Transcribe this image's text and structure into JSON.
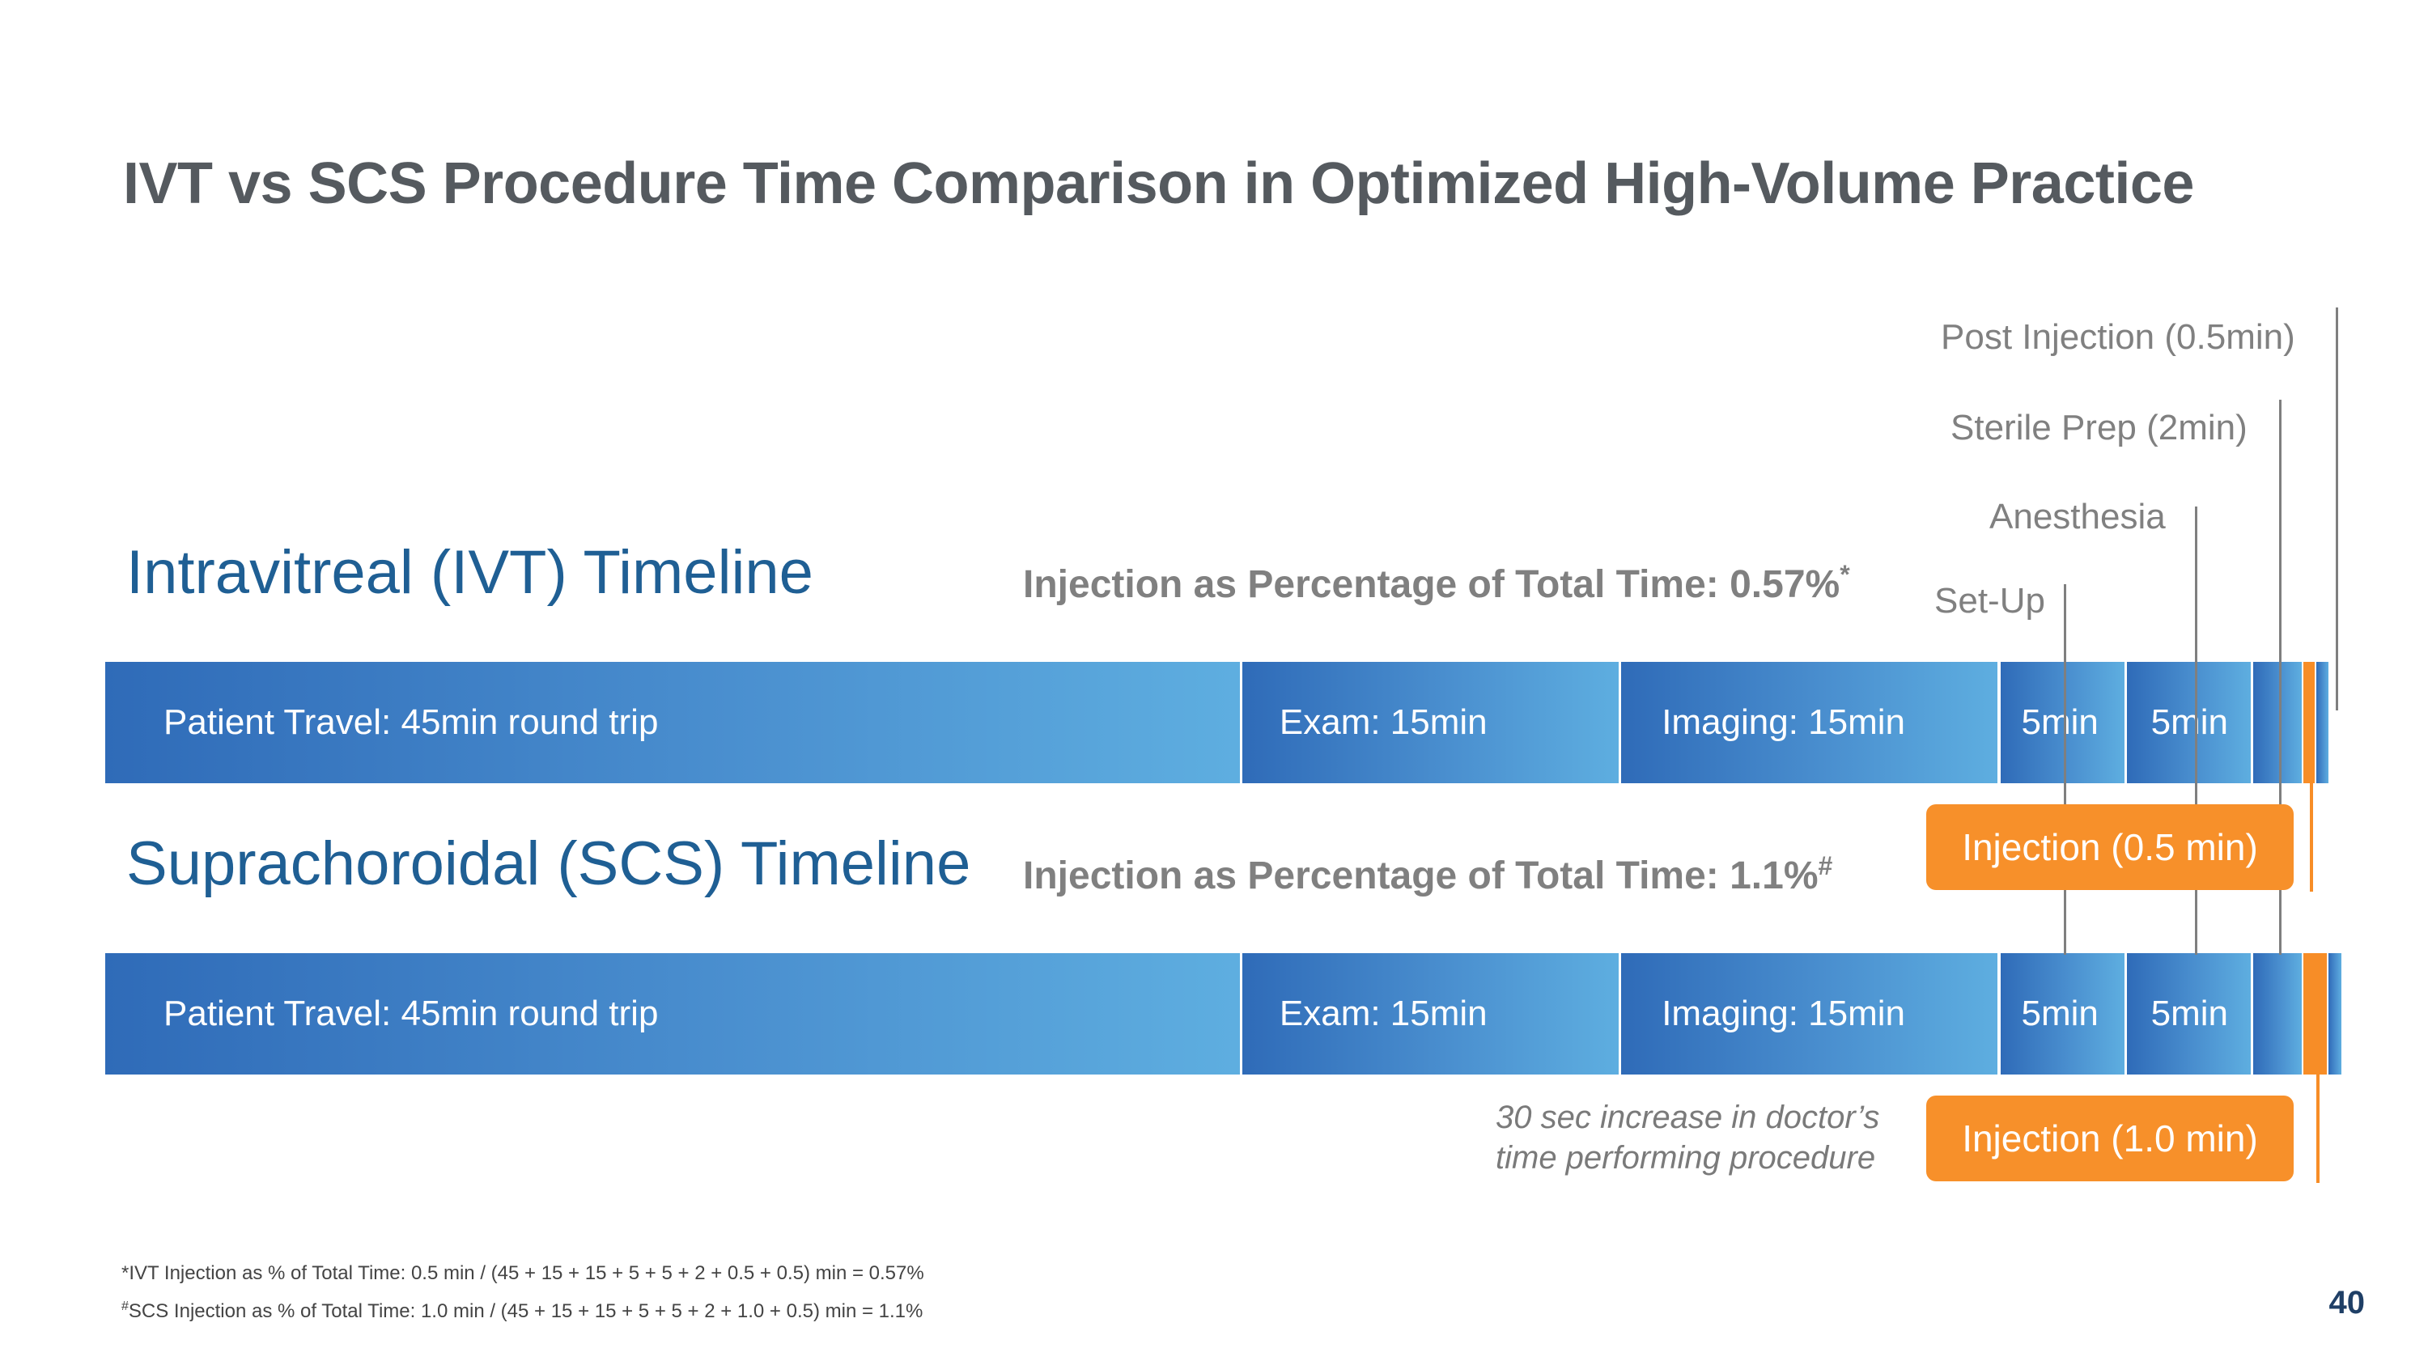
{
  "title": "IVT vs SCS Procedure Time Comparison in Optimized High-Volume Practice",
  "ivt": {
    "heading": "Intravitreal (IVT) Timeline",
    "pct_label": "Injection as Percentage of Total Time: 0.57%",
    "pct_mark": "*",
    "segments": [
      {
        "label": "Patient Travel: 45min round trip",
        "minutes": 45
      },
      {
        "label": "Exam: 15min",
        "minutes": 15
      },
      {
        "label": "Imaging: 15min",
        "minutes": 15
      },
      {
        "label": "5min",
        "minutes": 5
      },
      {
        "label": "5min",
        "minutes": 5
      },
      {
        "label": "",
        "minutes": 2
      },
      {
        "label": "",
        "minutes": 0.5
      },
      {
        "label": "",
        "minutes": 0.5
      }
    ],
    "injection_box": "Injection (0.5 min)"
  },
  "scs": {
    "heading": "Suprachoroidal (SCS) Timeline",
    "pct_label": "Injection as Percentage of Total Time: 1.1%",
    "pct_mark": "#",
    "segments": [
      {
        "label": "Patient Travel: 45min round trip",
        "minutes": 45
      },
      {
        "label": "Exam: 15min",
        "minutes": 15
      },
      {
        "label": "Imaging: 15min",
        "minutes": 15
      },
      {
        "label": "5min",
        "minutes": 5
      },
      {
        "label": "5min",
        "minutes": 5
      },
      {
        "label": "",
        "minutes": 2
      },
      {
        "label": "",
        "minutes": 1.0
      },
      {
        "label": "",
        "minutes": 0.5
      }
    ],
    "injection_box": "Injection (1.0 min)"
  },
  "callouts": {
    "post_injection": "Post Injection (0.5min)",
    "sterile_prep": "Sterile Prep (2min)",
    "anesthesia": "Anesthesia",
    "set_up": "Set-Up"
  },
  "note": "30 sec increase in doctor’s time performing procedure",
  "footnotes": {
    "ivt": "*IVT Injection as % of Total Time: 0.5 min / (45 + 15 + 15 + 5 + 5 + 2 + 0.5 + 0.5) min = 0.57%",
    "scs_mark": "#",
    "scs": "SCS Injection as % of Total Time: 1.0 min / (45 + 15 + 15 + 5 + 5 + 2 + 1.0 + 0.5) min = 1.1%"
  },
  "page_number": "40",
  "colors": {
    "bar_blue_dark": "#2f6bb8",
    "bar_blue_light": "#5eaee0",
    "injection_orange": "#f78d27",
    "heading_blue": "#1f5f94",
    "callout_gray": "#7f7f7f"
  }
}
